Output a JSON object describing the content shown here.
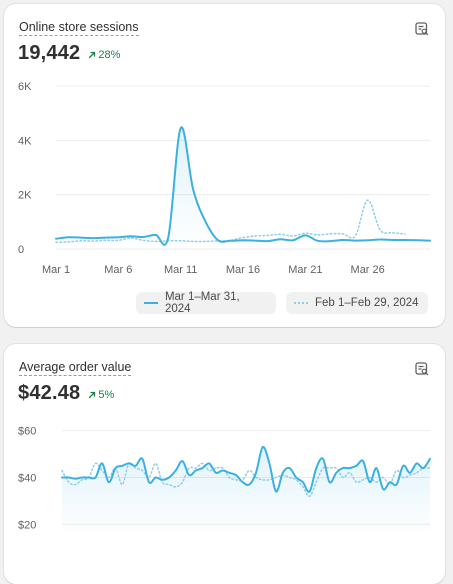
{
  "sessions_card": {
    "title": "Online store sessions",
    "value": "19,442",
    "delta": "28%"
  },
  "aov_card": {
    "title": "Average order value",
    "value": "$42.48",
    "delta": "5%"
  },
  "colors": {
    "primary_series": "#3bb0e1",
    "comparison_series": "#8fcdea",
    "positive_delta": "#1a7f4b"
  },
  "icons": {
    "explore": "chart-search-icon",
    "delta": "arrow-up-right-icon"
  },
  "chart_data": [
    {
      "type": "line",
      "x_type": "date",
      "categories": [
        "Mar 1",
        "Mar 2",
        "Mar 3",
        "Mar 4",
        "Mar 5",
        "Mar 6",
        "Mar 7",
        "Mar 8",
        "Mar 9",
        "Mar 10",
        "Mar 11",
        "Mar 12",
        "Mar 13",
        "Mar 14",
        "Mar 15",
        "Mar 16",
        "Mar 17",
        "Mar 18",
        "Mar 19",
        "Mar 20",
        "Mar 21",
        "Mar 22",
        "Mar 23",
        "Mar 24",
        "Mar 25",
        "Mar 26",
        "Mar 27",
        "Mar 28",
        "Mar 29",
        "Mar 30",
        "Mar 31"
      ],
      "xticks": [
        "Mar 1",
        "Mar 6",
        "Mar 11",
        "Mar 16",
        "Mar 21",
        "Mar 26"
      ],
      "yticks": [
        "0",
        "2K",
        "4K",
        "6K"
      ],
      "ylim": [
        0,
        6000
      ],
      "y_tick_values": [
        0,
        2000,
        4000,
        6000
      ],
      "series": [
        {
          "name": "Mar 1–Mar 31, 2024",
          "style": "solid",
          "values": [
            380,
            430,
            420,
            400,
            420,
            430,
            470,
            440,
            520,
            420,
            4450,
            2200,
            1000,
            320,
            300,
            320,
            310,
            290,
            360,
            320,
            500,
            300,
            290,
            330,
            310,
            320,
            350,
            330,
            330,
            320,
            310
          ]
        },
        {
          "name": "Feb 1–Feb 29, 2024",
          "style": "dotted",
          "values": [
            250,
            260,
            300,
            290,
            320,
            320,
            400,
            320,
            280,
            300,
            300,
            280,
            280,
            300,
            320,
            420,
            480,
            500,
            540,
            480,
            580,
            520,
            560,
            560,
            480,
            1800,
            700,
            600,
            550,
            null,
            null
          ]
        }
      ],
      "grid": true,
      "legend_position": "bottom"
    },
    {
      "type": "line",
      "yticks": [
        "$20",
        "$40",
        "$60"
      ],
      "y_tick_values": [
        20,
        40,
        60
      ],
      "ylim": [
        15,
        62
      ],
      "series": [
        {
          "style": "solid",
          "values": [
            40,
            40,
            39.5,
            40,
            40,
            40,
            46,
            38,
            44,
            45,
            46,
            45,
            48,
            38,
            40,
            39,
            40,
            43,
            47,
            41,
            43,
            44,
            46,
            42,
            43,
            42,
            41,
            38,
            37,
            42,
            53,
            46,
            34,
            42,
            44,
            40,
            38,
            34,
            44,
            48,
            38,
            42,
            44,
            44,
            45,
            47,
            38,
            44,
            35,
            38,
            37,
            45,
            42,
            46,
            44,
            48
          ]
        },
        {
          "style": "dotted",
          "values": [
            43,
            38,
            37,
            39,
            40,
            46,
            43,
            40,
            44,
            37,
            46,
            44,
            43,
            40,
            46,
            38,
            37,
            36,
            38,
            44,
            44,
            46,
            43,
            44,
            44,
            40,
            39,
            39,
            43,
            40,
            39,
            39,
            40,
            41,
            40,
            39,
            36,
            32,
            38,
            44,
            44,
            44,
            40,
            42,
            38,
            39,
            40,
            38,
            40,
            37,
            43,
            40,
            41,
            42,
            44,
            44
          ]
        }
      ],
      "grid": true
    }
  ]
}
